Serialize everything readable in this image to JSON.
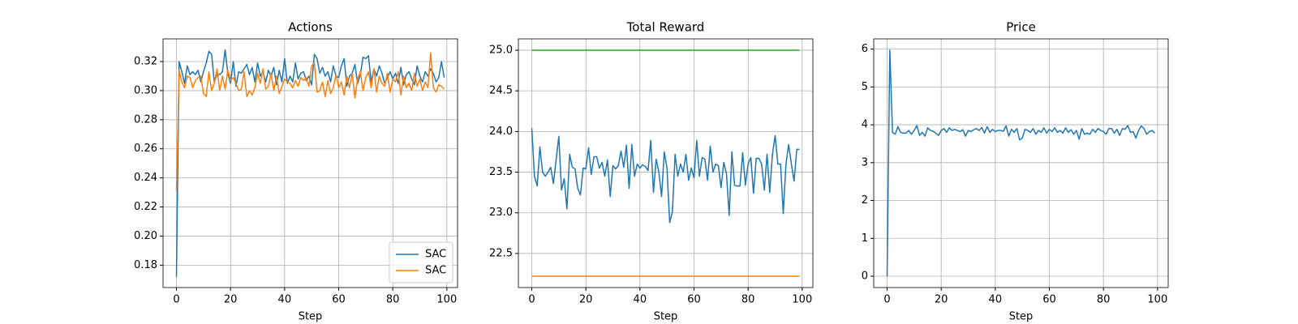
{
  "chart_data": [
    {
      "type": "line",
      "title": "Actions",
      "xlabel": "Step",
      "legend": "lower right",
      "grid": true,
      "xlim": [
        -4.95,
        103.95
      ],
      "xticks": [
        0,
        20,
        40,
        60,
        80,
        100
      ],
      "ylim": [
        0.1646,
        0.3356
      ],
      "yticks": [
        0.18,
        {
          "value": 0.2,
          "label": "0.20"
        },
        0.22,
        0.24,
        0.26,
        0.28,
        {
          "value": 0.3,
          "label": "0.30"
        },
        0.32
      ],
      "x": [
        0,
        1,
        2,
        3,
        4,
        5,
        6,
        7,
        8,
        9,
        10,
        11,
        12,
        13,
        14,
        15,
        16,
        17,
        18,
        19,
        20,
        21,
        22,
        23,
        24,
        25,
        26,
        27,
        28,
        29,
        30,
        31,
        32,
        33,
        34,
        35,
        36,
        37,
        38,
        39,
        40,
        41,
        42,
        43,
        44,
        45,
        46,
        47,
        48,
        49,
        50,
        51,
        52,
        53,
        54,
        55,
        56,
        57,
        58,
        59,
        60,
        61,
        62,
        63,
        64,
        65,
        66,
        67,
        68,
        69,
        70,
        71,
        72,
        73,
        74,
        75,
        76,
        77,
        78,
        79,
        80,
        81,
        82,
        83,
        84,
        85,
        86,
        87,
        88,
        89,
        90,
        91,
        92,
        93,
        94,
        95,
        96,
        97,
        98,
        99
      ],
      "series": [
        {
          "name": "SAC",
          "color": "#1f77b4",
          "values": [
            0.172,
            0.32,
            0.313,
            0.305,
            0.317,
            0.311,
            0.313,
            0.311,
            0.314,
            0.306,
            0.313,
            0.319,
            0.327,
            0.325,
            0.306,
            0.311,
            0.311,
            0.313,
            0.328,
            0.312,
            0.305,
            0.32,
            0.303,
            0.313,
            0.312,
            0.315,
            0.318,
            0.311,
            0.316,
            0.306,
            0.319,
            0.31,
            0.313,
            0.306,
            0.314,
            0.31,
            0.316,
            0.304,
            0.314,
            0.306,
            0.322,
            0.305,
            0.31,
            0.306,
            0.319,
            0.308,
            0.312,
            0.313,
            0.307,
            0.31,
            0.304,
            0.325,
            0.322,
            0.312,
            0.316,
            0.31,
            0.313,
            0.306,
            0.317,
            0.31,
            0.309,
            0.317,
            0.322,
            0.303,
            0.31,
            0.312,
            0.318,
            0.305,
            0.311,
            0.323,
            0.322,
            0.324,
            0.306,
            0.315,
            0.31,
            0.317,
            0.312,
            0.305,
            0.309,
            0.313,
            0.308,
            0.312,
            0.305,
            0.316,
            0.304,
            0.311,
            0.313,
            0.308,
            0.304,
            0.317,
            0.31,
            0.306,
            0.313,
            0.31,
            0.315,
            0.312,
            0.306,
            0.309,
            0.32,
            0.309
          ]
        },
        {
          "name": "SAC",
          "color": "#ff7f0e",
          "values": [
            0.231,
            0.314,
            0.306,
            0.302,
            0.31,
            0.309,
            0.302,
            0.307,
            0.309,
            0.31,
            0.298,
            0.296,
            0.313,
            0.3,
            0.305,
            0.315,
            0.3,
            0.31,
            0.301,
            0.314,
            0.307,
            0.309,
            0.305,
            0.3,
            0.301,
            0.313,
            0.296,
            0.3,
            0.297,
            0.302,
            0.312,
            0.305,
            0.315,
            0.301,
            0.303,
            0.312,
            0.3,
            0.31,
            0.298,
            0.303,
            0.308,
            0.306,
            0.305,
            0.302,
            0.307,
            0.303,
            0.309,
            0.307,
            0.309,
            0.303,
            0.317,
            0.319,
            0.299,
            0.3,
            0.306,
            0.296,
            0.307,
            0.298,
            0.302,
            0.311,
            0.302,
            0.306,
            0.297,
            0.31,
            0.302,
            0.312,
            0.295,
            0.308,
            0.313,
            0.3,
            0.309,
            0.313,
            0.302,
            0.315,
            0.299,
            0.31,
            0.305,
            0.303,
            0.312,
            0.299,
            0.308,
            0.306,
            0.313,
            0.297,
            0.31,
            0.302,
            0.305,
            0.3,
            0.312,
            0.303,
            0.308,
            0.3,
            0.306,
            0.302,
            0.326,
            0.302,
            0.299,
            0.304,
            0.303,
            0.301
          ]
        }
      ]
    },
    {
      "type": "line",
      "title": "Total Reward",
      "xlabel": "Step",
      "grid": true,
      "xlim": [
        -4.95,
        103.95
      ],
      "xticks": [
        0,
        20,
        40,
        60,
        80,
        100
      ],
      "ylim": [
        22.081,
        25.139
      ],
      "yticks": [
        22.5,
        {
          "value": 23,
          "label": "23.0"
        },
        23.5,
        {
          "value": 24,
          "label": "24.0"
        },
        24.5,
        {
          "value": 25,
          "label": "25.0"
        }
      ],
      "x": [
        0,
        1,
        2,
        3,
        4,
        5,
        6,
        7,
        8,
        9,
        10,
        11,
        12,
        13,
        14,
        15,
        16,
        17,
        18,
        19,
        20,
        21,
        22,
        23,
        24,
        25,
        26,
        27,
        28,
        29,
        30,
        31,
        32,
        33,
        34,
        35,
        36,
        37,
        38,
        39,
        40,
        41,
        42,
        43,
        44,
        45,
        46,
        47,
        48,
        49,
        50,
        51,
        52,
        53,
        54,
        55,
        56,
        57,
        58,
        59,
        60,
        61,
        62,
        63,
        64,
        65,
        66,
        67,
        68,
        69,
        70,
        71,
        72,
        73,
        74,
        75,
        76,
        77,
        78,
        79,
        80,
        81,
        82,
        83,
        84,
        85,
        86,
        87,
        88,
        89,
        90,
        91,
        92,
        93,
        94,
        95,
        96,
        97,
        98,
        99
      ],
      "series": [
        {
          "color": "#1f77b4",
          "values": [
            24.04,
            23.45,
            23.33,
            23.81,
            23.5,
            23.45,
            23.5,
            23.56,
            23.36,
            23.65,
            23.94,
            23.28,
            23.42,
            23.05,
            23.72,
            23.56,
            23.54,
            23.3,
            23.22,
            23.55,
            23.54,
            23.8,
            23.47,
            23.69,
            23.69,
            23.55,
            23.62,
            23.45,
            23.65,
            23.2,
            23.58,
            23.54,
            23.58,
            23.76,
            23.56,
            23.83,
            23.3,
            23.84,
            23.45,
            23.6,
            23.55,
            23.59,
            23.57,
            23.52,
            23.89,
            23.25,
            23.66,
            23.5,
            23.2,
            23.75,
            23.55,
            22.88,
            23.01,
            23.72,
            23.45,
            23.6,
            23.5,
            23.72,
            23.4,
            23.55,
            23.43,
            23.89,
            23.45,
            23.68,
            23.66,
            23.4,
            23.82,
            23.5,
            23.6,
            23.58,
            23.31,
            23.62,
            23.48,
            22.97,
            23.75,
            23.34,
            23.33,
            23.33,
            23.74,
            23.34,
            23.6,
            23.68,
            23.24,
            23.67,
            23.67,
            23.6,
            23.28,
            23.72,
            23.25,
            23.72,
            23.95,
            23.6,
            23.6,
            22.99,
            23.6,
            23.84,
            23.6,
            23.39,
            23.78,
            23.78
          ]
        },
        {
          "color": "#ff7f0e",
          "x": [
            0,
            99
          ],
          "values": [
            22.22,
            22.22
          ]
        },
        {
          "color": "#2ca02c",
          "x": [
            0,
            99
          ],
          "values": [
            25.0,
            25.0
          ]
        }
      ]
    },
    {
      "type": "line",
      "title": "Price",
      "xlabel": "Step",
      "grid": true,
      "xlim": [
        -4.95,
        103.95
      ],
      "xticks": [
        0,
        20,
        40,
        60,
        80,
        100
      ],
      "ylim": [
        -0.3,
        6.27
      ],
      "yticks": [
        0,
        1,
        2,
        3,
        4,
        5,
        6
      ],
      "x": [
        0,
        1,
        2,
        3,
        4,
        5,
        6,
        7,
        8,
        9,
        10,
        11,
        12,
        13,
        14,
        15,
        16,
        17,
        18,
        19,
        20,
        21,
        22,
        23,
        24,
        25,
        26,
        27,
        28,
        29,
        30,
        31,
        32,
        33,
        34,
        35,
        36,
        37,
        38,
        39,
        40,
        41,
        42,
        43,
        44,
        45,
        46,
        47,
        48,
        49,
        50,
        51,
        52,
        53,
        54,
        55,
        56,
        57,
        58,
        59,
        60,
        61,
        62,
        63,
        64,
        65,
        66,
        67,
        68,
        69,
        70,
        71,
        72,
        73,
        74,
        75,
        76,
        77,
        78,
        79,
        80,
        81,
        82,
        83,
        84,
        85,
        86,
        87,
        88,
        89,
        90,
        91,
        92,
        93,
        94,
        95,
        96,
        97,
        98,
        99
      ],
      "series": [
        {
          "color": "#1f77b4",
          "values": [
            0,
            5.97,
            3.8,
            3.75,
            3.95,
            3.8,
            3.78,
            3.78,
            3.85,
            3.75,
            3.85,
            3.98,
            3.72,
            3.8,
            3.7,
            3.92,
            3.85,
            3.83,
            3.78,
            3.72,
            3.85,
            3.9,
            3.8,
            3.92,
            3.85,
            3.88,
            3.85,
            3.82,
            3.87,
            3.7,
            3.85,
            3.82,
            3.87,
            3.9,
            3.85,
            3.93,
            3.78,
            3.95,
            3.8,
            3.88,
            3.82,
            3.85,
            3.85,
            3.83,
            3.97,
            3.7,
            3.88,
            3.8,
            3.9,
            3.6,
            3.65,
            3.88,
            3.85,
            3.8,
            3.9,
            3.75,
            3.85,
            3.8,
            3.92,
            3.78,
            3.88,
            3.82,
            3.92,
            3.8,
            3.85,
            3.78,
            3.92,
            3.8,
            3.87,
            3.75,
            3.85,
            3.62,
            3.9,
            3.75,
            3.78,
            3.75,
            3.88,
            3.8,
            3.9,
            3.85,
            3.82,
            3.75,
            3.9,
            3.9,
            3.78,
            3.88,
            3.72,
            3.9,
            3.88,
            3.98,
            3.8,
            3.82,
            3.65,
            3.85,
            3.97,
            3.9,
            3.75,
            3.82,
            3.85,
            3.78
          ]
        }
      ]
    }
  ]
}
